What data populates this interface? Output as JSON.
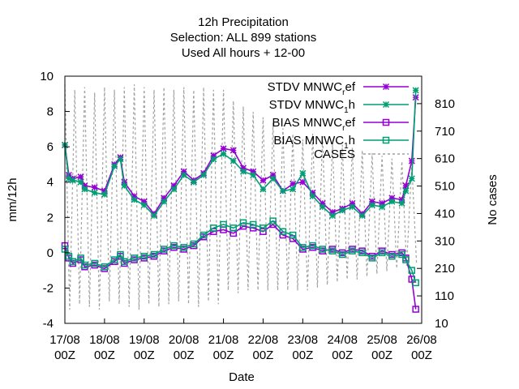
{
  "chart_data": {
    "type": "line",
    "title_lines": [
      "12h Precipitation",
      "Selection: ALL     899 stations",
      "Used  All hours  + 12-00"
    ],
    "xlabel": "Date",
    "ylabel": "mm/12h",
    "y2label": "No cases",
    "ylim": [
      -4,
      10
    ],
    "yticks": [
      -4,
      -2,
      0,
      2,
      4,
      6,
      8,
      10
    ],
    "y2lim": [
      10,
      910
    ],
    "y2ticks": [
      10,
      110,
      210,
      310,
      410,
      510,
      610,
      710,
      810
    ],
    "xlim": [
      0,
      9
    ],
    "x_tick_values": [
      0,
      1,
      2,
      3,
      4,
      5,
      6,
      7,
      8,
      9
    ],
    "x_tick_labels": [
      [
        "17/08",
        "00Z"
      ],
      [
        "18/08",
        "00Z"
      ],
      [
        "19/08",
        "00Z"
      ],
      [
        "20/08",
        "00Z"
      ],
      [
        "21/08",
        "00Z"
      ],
      [
        "22/08",
        "00Z"
      ],
      [
        "23/08",
        "00Z"
      ],
      [
        "24/08",
        "00Z"
      ],
      [
        "25/08",
        "00Z"
      ],
      [
        "26/08",
        "00Z"
      ]
    ],
    "grid": false,
    "legend_position": "top-right",
    "series": [
      {
        "name": "STDV MNWC_ref",
        "label_main": "STDV MNWC",
        "label_sub": "r",
        "label_tail": "ef",
        "color": "#9400d3",
        "marker": "x",
        "axis": "y",
        "x": [
          0,
          0.1,
          0.2,
          0.4,
          0.5,
          0.75,
          1.0,
          1.25,
          1.4,
          1.5,
          1.75,
          2.0,
          2.25,
          2.5,
          2.75,
          3.0,
          3.25,
          3.5,
          3.75,
          4.0,
          4.25,
          4.5,
          4.75,
          5.0,
          5.25,
          5.5,
          5.75,
          6.0,
          6.25,
          6.5,
          6.75,
          7.0,
          7.25,
          7.5,
          7.75,
          8.0,
          8.25,
          8.5,
          8.6,
          8.75,
          8.85
        ],
        "y": [
          6.1,
          4.4,
          4.2,
          4.3,
          3.8,
          3.7,
          3.5,
          5.0,
          5.4,
          4.0,
          3.2,
          2.9,
          2.2,
          3.1,
          3.8,
          4.6,
          4.1,
          4.5,
          5.5,
          5.9,
          5.8,
          4.8,
          4.6,
          4.1,
          4.4,
          3.5,
          3.9,
          4.0,
          3.4,
          2.8,
          2.3,
          2.5,
          2.8,
          2.2,
          2.9,
          2.8,
          3.1,
          3.0,
          3.8,
          5.2,
          8.8
        ]
      },
      {
        "name": "STDV MNWC_1h",
        "label_main": "STDV MNWC",
        "label_sub": "1",
        "label_tail": "h",
        "color": "#009e73",
        "marker": "x",
        "axis": "y",
        "x": [
          0,
          0.1,
          0.2,
          0.4,
          0.5,
          0.75,
          1.0,
          1.25,
          1.4,
          1.5,
          1.75,
          2.0,
          2.25,
          2.5,
          2.75,
          3.0,
          3.25,
          3.5,
          3.75,
          4.0,
          4.25,
          4.5,
          4.75,
          5.0,
          5.25,
          5.5,
          5.75,
          6.0,
          6.25,
          6.5,
          6.75,
          7.0,
          7.25,
          7.5,
          7.75,
          8.0,
          8.25,
          8.5,
          8.6,
          8.75,
          8.85
        ],
        "y": [
          6.1,
          4.2,
          4.1,
          4.0,
          3.6,
          3.4,
          3.3,
          4.9,
          5.3,
          3.8,
          3.0,
          2.7,
          2.1,
          2.9,
          3.6,
          4.4,
          4.0,
          4.4,
          5.3,
          5.6,
          5.2,
          4.6,
          4.4,
          3.6,
          4.2,
          3.5,
          3.6,
          4.5,
          3.2,
          2.6,
          2.1,
          2.4,
          2.6,
          2.1,
          2.7,
          2.6,
          2.9,
          2.8,
          3.5,
          4.2,
          9.2
        ]
      },
      {
        "name": "BIAS MNWC_ref",
        "label_main": "BIAS MNWC",
        "label_sub": "r",
        "label_tail": "ef",
        "color": "#9400d3",
        "marker": "square",
        "axis": "y",
        "x": [
          0,
          0.1,
          0.2,
          0.4,
          0.5,
          0.75,
          1.0,
          1.25,
          1.4,
          1.5,
          1.75,
          2.0,
          2.25,
          2.5,
          2.75,
          3.0,
          3.25,
          3.5,
          3.75,
          4.0,
          4.25,
          4.5,
          4.75,
          5.0,
          5.25,
          5.5,
          5.75,
          6.0,
          6.25,
          6.5,
          6.75,
          7.0,
          7.25,
          7.5,
          7.75,
          8.0,
          8.25,
          8.5,
          8.6,
          8.75,
          8.85
        ],
        "y": [
          0.4,
          -0.3,
          -0.6,
          -0.4,
          -0.8,
          -0.7,
          -0.9,
          -0.5,
          -0.2,
          -0.6,
          -0.4,
          -0.3,
          -0.2,
          0.1,
          0.3,
          0.2,
          0.4,
          0.9,
          1.2,
          1.3,
          1.1,
          1.5,
          1.4,
          1.2,
          1.6,
          1.0,
          0.8,
          0.2,
          0.3,
          0.1,
          0.2,
          0.0,
          0.2,
          0.1,
          -0.2,
          0.1,
          -0.1,
          0.0,
          -0.3,
          -1.5,
          -3.2
        ]
      },
      {
        "name": "BIAS MNWC_1h",
        "label_main": "BIAS MNWC",
        "label_sub": "1",
        "label_tail": "h",
        "color": "#009e73",
        "marker": "square",
        "axis": "y",
        "x": [
          0,
          0.1,
          0.2,
          0.4,
          0.5,
          0.75,
          1.0,
          1.25,
          1.4,
          1.5,
          1.75,
          2.0,
          2.25,
          2.5,
          2.75,
          3.0,
          3.25,
          3.5,
          3.75,
          4.0,
          4.25,
          4.5,
          4.75,
          5.0,
          5.25,
          5.5,
          5.75,
          6.0,
          6.25,
          6.5,
          6.75,
          7.0,
          7.25,
          7.5,
          7.75,
          8.0,
          8.25,
          8.5,
          8.6,
          8.75,
          8.85
        ],
        "y": [
          0.2,
          -0.2,
          -0.5,
          -0.3,
          -0.7,
          -0.6,
          -0.8,
          -0.4,
          -0.1,
          -0.5,
          -0.3,
          -0.2,
          -0.1,
          0.2,
          0.4,
          0.3,
          0.5,
          1.0,
          1.4,
          1.6,
          1.4,
          1.7,
          1.6,
          1.4,
          1.8,
          1.2,
          1.0,
          0.3,
          0.4,
          0.2,
          0.1,
          -0.1,
          0.1,
          0.0,
          -0.3,
          0.0,
          -0.2,
          -0.1,
          -0.4,
          -1.0,
          -1.7
        ]
      },
      {
        "name": "CASES",
        "label_main": "CASES",
        "label_sub": "",
        "label_tail": "",
        "color": "#a0a0a0",
        "marker": "none",
        "dashed": true,
        "axis": "y2",
        "x": [
          0.0,
          0.12,
          0.25,
          0.37,
          0.5,
          0.62,
          0.75,
          0.87,
          1.0,
          1.12,
          1.25,
          1.37,
          1.5,
          1.62,
          1.75,
          1.87,
          2.0,
          2.12,
          2.25,
          2.37,
          2.5,
          2.62,
          2.75,
          2.87,
          3.0,
          3.12,
          3.25,
          3.37,
          3.5,
          3.62,
          3.75,
          3.87,
          4.0,
          4.12,
          4.25,
          4.37,
          4.5,
          4.62,
          4.75,
          4.87,
          5.0,
          5.12,
          5.25,
          5.37,
          5.5,
          5.62,
          5.75,
          5.87,
          6.0,
          6.12,
          6.25,
          6.37,
          6.5,
          6.62,
          6.75,
          6.87,
          7.0,
          7.12,
          7.25,
          7.37,
          7.5,
          7.62,
          7.75,
          7.87,
          8.0,
          8.12,
          8.25,
          8.37,
          8.5,
          8.62,
          8.75,
          8.87
        ],
        "y": [
          880,
          60,
          860,
          80,
          870,
          70,
          850,
          60,
          870,
          90,
          860,
          80,
          870,
          70,
          880,
          60,
          870,
          80,
          860,
          70,
          870,
          80,
          860,
          90,
          870,
          80,
          860,
          70,
          870,
          90,
          860,
          80,
          860,
          130,
          820,
          120,
          800,
          130,
          780,
          130,
          760,
          130,
          740,
          130,
          720,
          130,
          700,
          130,
          680,
          130,
          700,
          140,
          690,
          150,
          670,
          160,
          660,
          170,
          650,
          170,
          640,
          180,
          630,
          190,
          620,
          200,
          610,
          210,
          600,
          220,
          590,
          230
        ]
      }
    ]
  }
}
